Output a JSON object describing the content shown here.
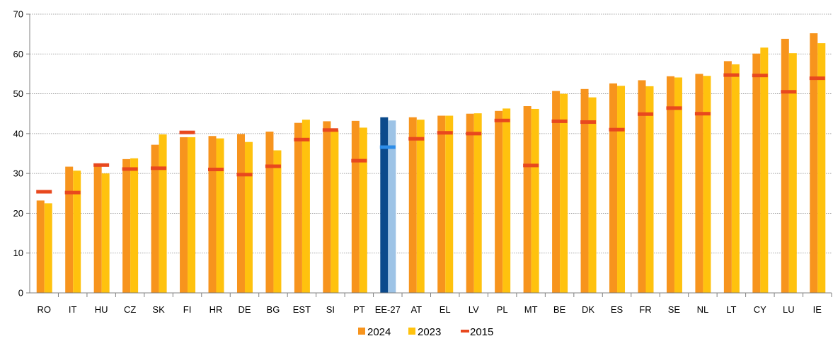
{
  "chart_data": {
    "type": "bar",
    "title": "",
    "xlabel": "",
    "ylabel": "",
    "ylim": [
      0,
      70
    ],
    "yticks": [
      0,
      10,
      20,
      30,
      40,
      50,
      60,
      70
    ],
    "grid": true,
    "legend_position": "bottom",
    "categories": [
      "RO",
      "IT",
      "HU",
      "CZ",
      "SK",
      "FI",
      "HR",
      "DE",
      "BG",
      "EST",
      "SI",
      "PT",
      "EE-27",
      "AT",
      "EL",
      "LV",
      "PL",
      "MT",
      "BE",
      "DK",
      "ES",
      "FR",
      "SE",
      "NL",
      "LT",
      "CY",
      "LU",
      "IE"
    ],
    "highlight_category": "EE-27",
    "series": [
      {
        "name": "2024",
        "kind": "bar",
        "color": "#F7941D",
        "highlight_color": "#0B4A8C",
        "values": [
          23.2,
          31.7,
          32.1,
          33.6,
          37.2,
          39.1,
          39.4,
          39.9,
          40.5,
          42.7,
          43.1,
          43.2,
          44.1,
          44.1,
          44.5,
          45.0,
          45.7,
          46.9,
          50.7,
          51.2,
          52.6,
          53.4,
          54.4,
          55.0,
          58.2,
          60.1,
          63.8,
          65.2
        ]
      },
      {
        "name": "2023",
        "kind": "bar",
        "color": "#FFC20E",
        "highlight_color": "#9DC3E6",
        "values": [
          22.5,
          30.7,
          30.0,
          33.8,
          39.8,
          39.1,
          38.8,
          37.9,
          35.8,
          43.5,
          40.8,
          41.5,
          43.3,
          43.5,
          44.5,
          45.1,
          46.3,
          46.2,
          50.0,
          49.1,
          52.0,
          51.9,
          54.1,
          54.5,
          57.4,
          61.6,
          60.2,
          62.7
        ]
      },
      {
        "name": "2015",
        "kind": "marker",
        "color": "#E8481E",
        "highlight_color": "#2E8DE8",
        "values": [
          25.4,
          25.2,
          32.1,
          31.1,
          31.3,
          40.3,
          31.0,
          29.7,
          31.8,
          38.5,
          40.9,
          33.2,
          36.6,
          38.7,
          40.2,
          40.0,
          43.3,
          32.0,
          43.1,
          42.9,
          41.0,
          44.9,
          46.4,
          45.0,
          54.7,
          54.6,
          50.5,
          53.9
        ]
      }
    ]
  }
}
